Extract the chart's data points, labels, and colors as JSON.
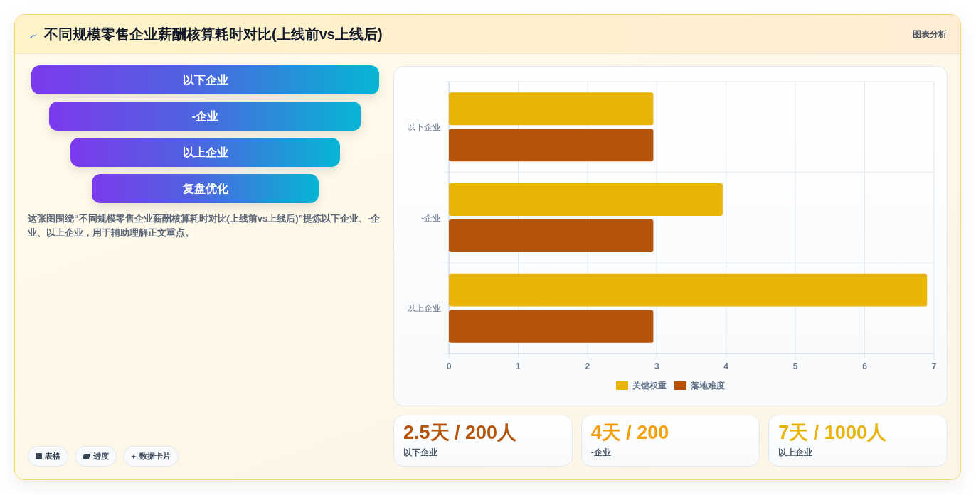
{
  "chart_data": [
    {
      "type": "other",
      "title": "不同规模零售企业薪酬核算耗时对比(上线前vs上线后)",
      "categories": [
        "以下企业",
        "-企业",
        "以上企业",
        "复盘优化"
      ],
      "annotations": [
        "图表分析",
        "这张图围绕“不同规模零售企业薪酬核算耗时对比(上线前vs上线后)”提炼以下企业、-企业、以上企业，用于辅助理解正文重点。",
        "表格",
        "进度",
        "数据卡片"
      ]
    },
    {
      "type": "bar",
      "orientation": "horizontal",
      "categories": [
        "以下企业",
        "-企业",
        "以上企业"
      ],
      "series": [
        {
          "name": "关键权重",
          "color": "#eab308",
          "values": [
            2.95,
            3.95,
            6.9
          ]
        },
        {
          "name": "落地难度",
          "color": "#b45309",
          "values": [
            2.95,
            2.95,
            2.95
          ]
        }
      ],
      "xlim": [
        0,
        7
      ],
      "xticks": [
        0,
        1,
        2,
        3,
        4,
        5,
        6,
        7
      ],
      "grid": true,
      "legend": "bottom"
    },
    {
      "type": "other",
      "categories": [
        "以下企业",
        "-企业",
        "以上企业"
      ],
      "value_labels": [
        "2.5天 / 200人",
        "4天 / 200",
        "7天 / 1000人"
      ]
    }
  ]
}
